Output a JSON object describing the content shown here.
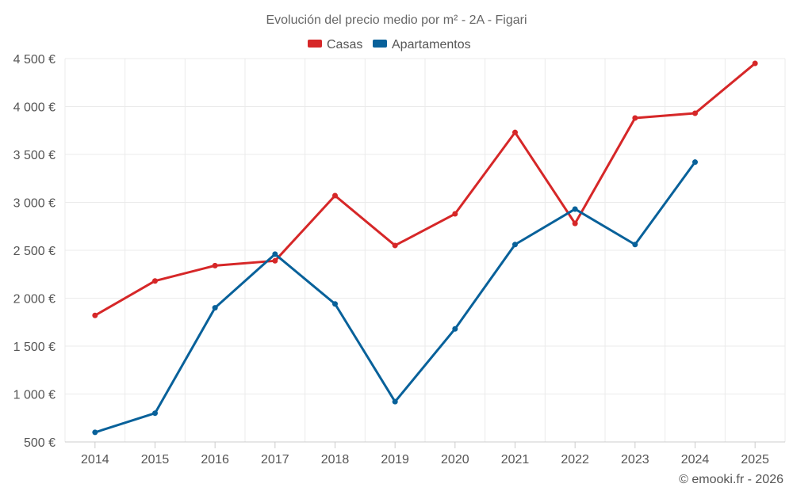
{
  "chart_data": {
    "type": "line",
    "title": "Evolución del precio medio por m² - 2A - Figari",
    "categories": [
      "2014",
      "2015",
      "2016",
      "2017",
      "2018",
      "2019",
      "2020",
      "2021",
      "2022",
      "2023",
      "2024",
      "2025"
    ],
    "y_ticks": [
      500,
      1000,
      1500,
      2000,
      2500,
      3000,
      3500,
      4000,
      4500
    ],
    "y_tick_labels": [
      "500 €",
      "1 000 €",
      "1 500 €",
      "2 000 €",
      "2 500 €",
      "3 000 €",
      "3 500 €",
      "4 000 €",
      "4 500 €"
    ],
    "ylim": [
      500,
      4500
    ],
    "xlabel": "",
    "ylabel": "",
    "grid": true,
    "legend_position": "top-center",
    "series": [
      {
        "name": "Casas",
        "color": "#d62728",
        "values": [
          1820,
          2180,
          2340,
          2390,
          3070,
          2550,
          2880,
          3730,
          2780,
          3880,
          3930,
          4450
        ]
      },
      {
        "name": "Apartamentos",
        "color": "#08619a",
        "values": [
          600,
          800,
          1900,
          2460,
          1940,
          920,
          1680,
          2560,
          2930,
          2560,
          3420,
          null
        ]
      }
    ],
    "credit": "© emooki.fr - 2026"
  }
}
